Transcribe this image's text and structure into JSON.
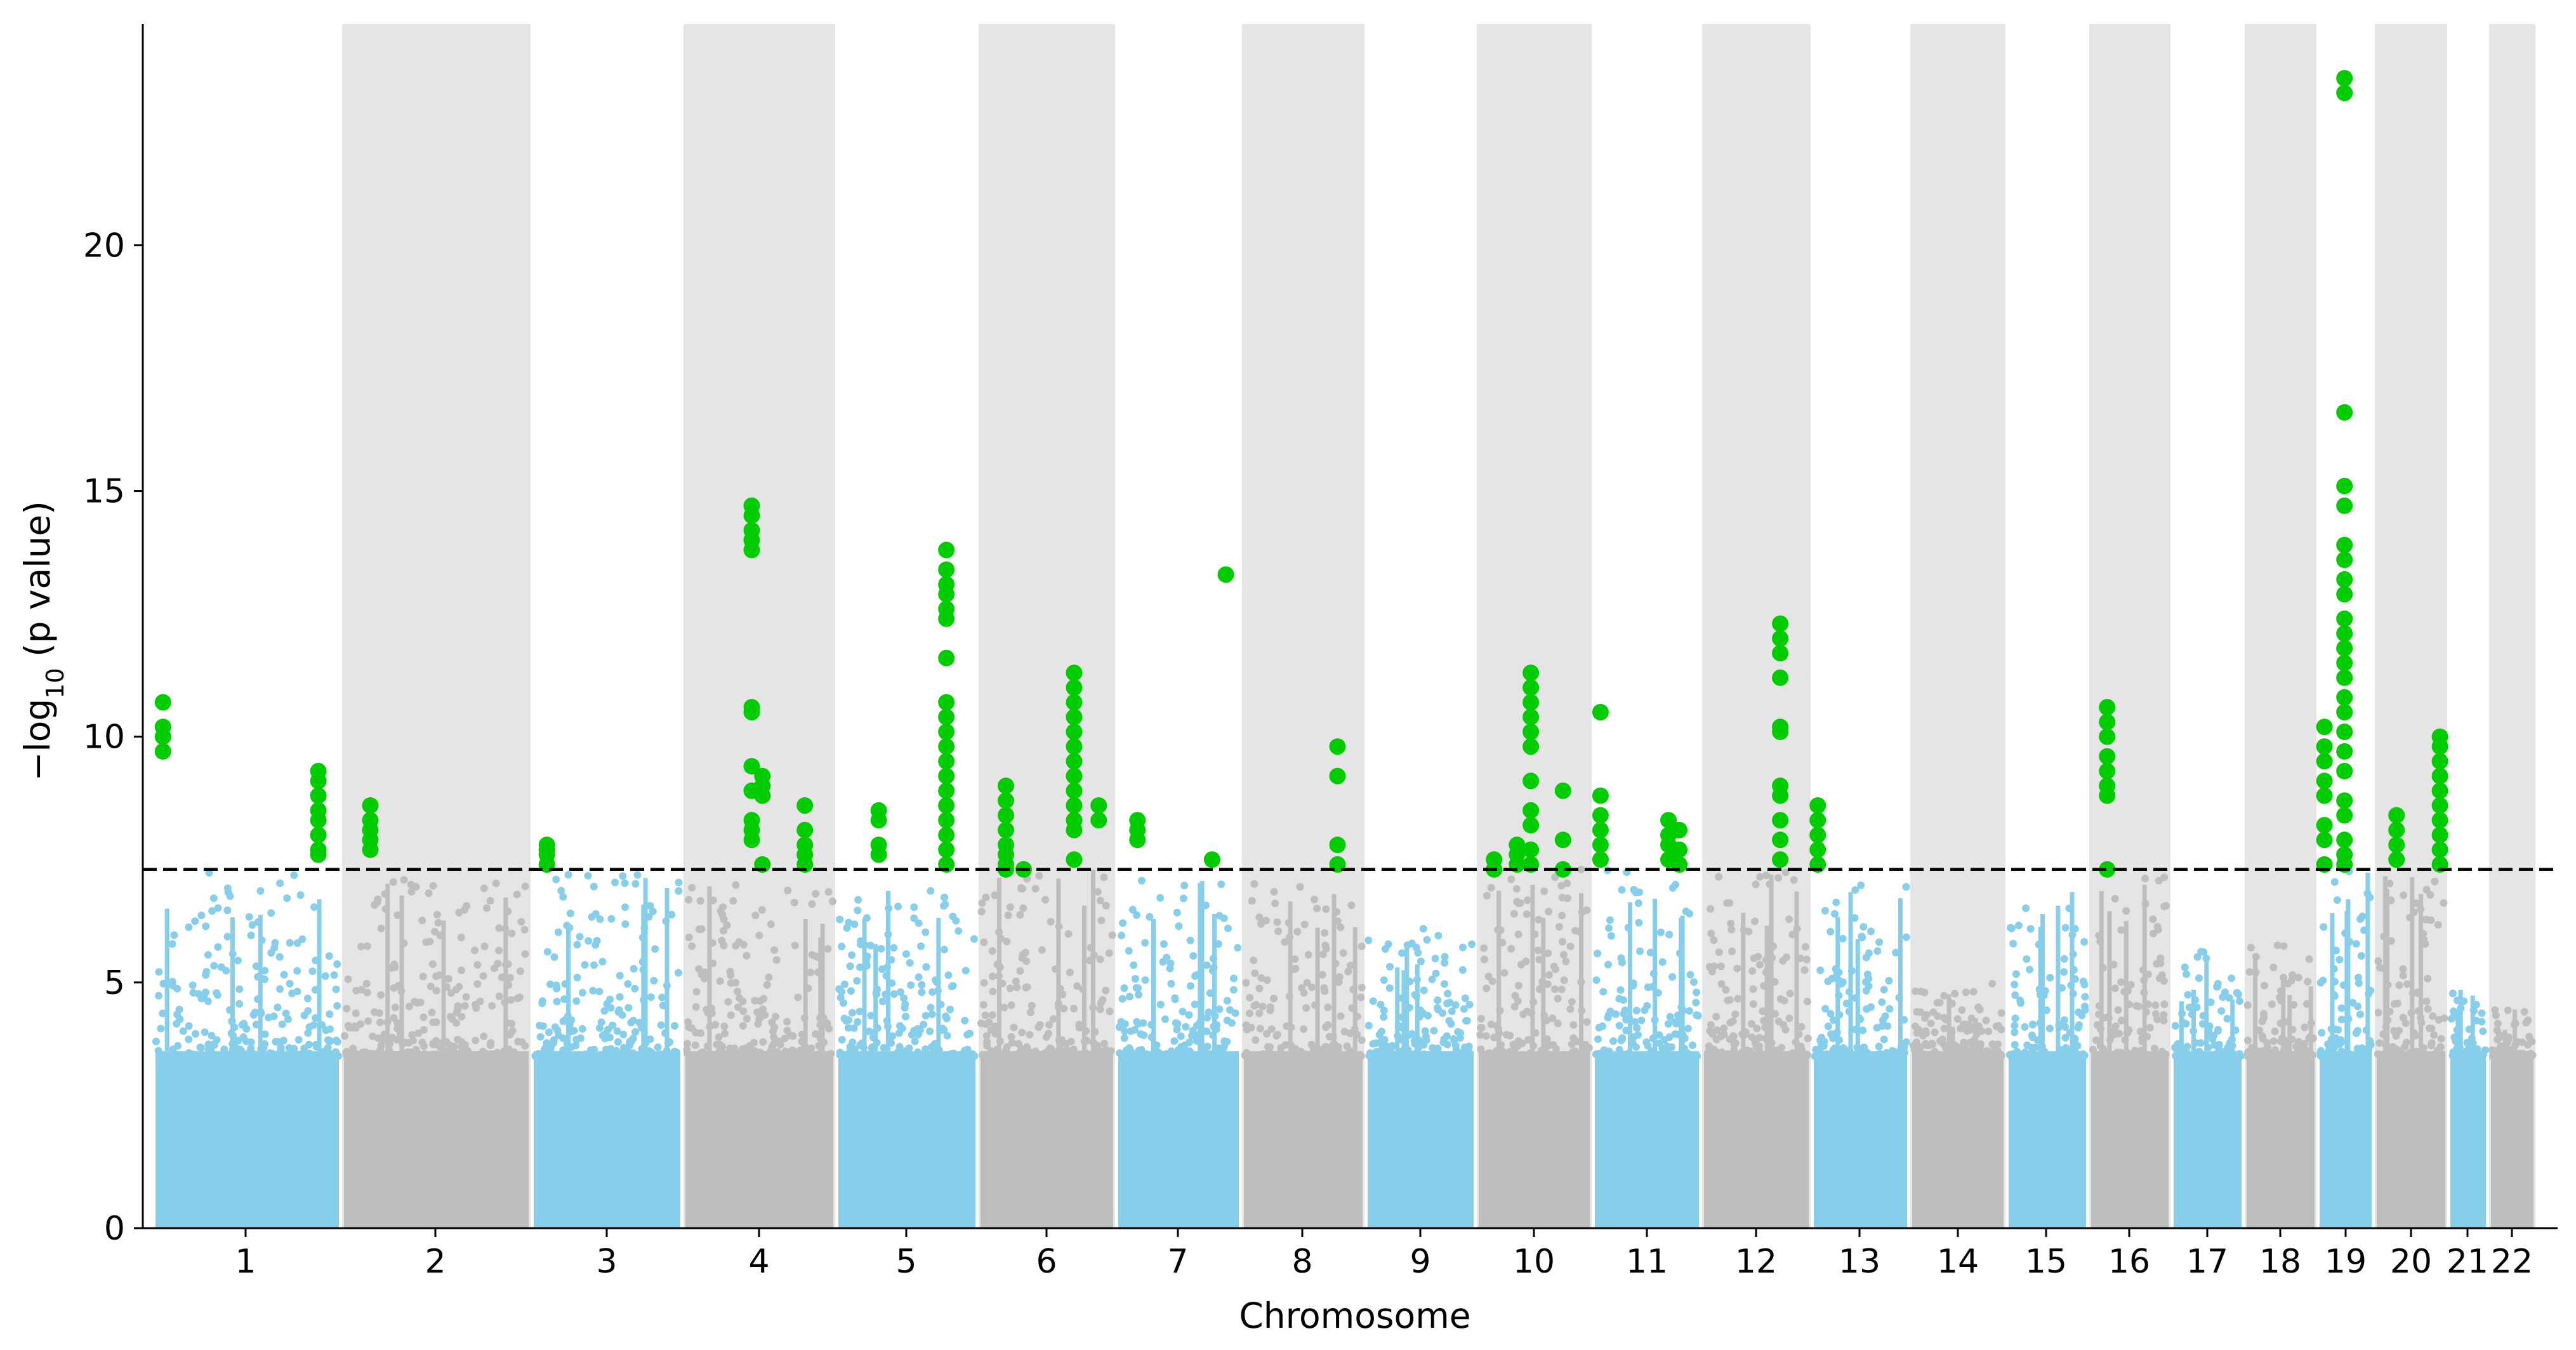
{
  "chart_data": {
    "type": "scatter",
    "subtype": "manhattan",
    "xlabel": "Chromosome",
    "ylabel": "−log10 (p value)",
    "ylim": [
      0,
      24.5
    ],
    "yticks": [
      0,
      5,
      10,
      15,
      20
    ],
    "grid": false,
    "legend": "none",
    "significance_threshold": 7.3,
    "colors": {
      "odd_chromosome": "#87CEEB",
      "even_chromosome": "#BEBEBE",
      "significant": "#00CC00",
      "band": "#E5E5E5",
      "threshold_line": "#000000"
    },
    "chromosomes": [
      {
        "label": "1",
        "band": false,
        "color": "odd",
        "peak": 7.3
      },
      {
        "label": "2",
        "band": true,
        "color": "even",
        "peak": 7.1
      },
      {
        "label": "3",
        "band": false,
        "color": "odd",
        "peak": 7.2
      },
      {
        "label": "4",
        "band": true,
        "color": "even",
        "peak": 7.0
      },
      {
        "label": "5",
        "band": false,
        "color": "odd",
        "peak": 6.9
      },
      {
        "label": "6",
        "band": true,
        "color": "even",
        "peak": 7.3
      },
      {
        "label": "7",
        "band": false,
        "color": "odd",
        "peak": 7.2
      },
      {
        "label": "8",
        "band": true,
        "color": "even",
        "peak": 7.1
      },
      {
        "label": "9",
        "band": false,
        "color": "odd",
        "peak": 6.2
      },
      {
        "label": "10",
        "band": true,
        "color": "even",
        "peak": 7.3
      },
      {
        "label": "11",
        "band": false,
        "color": "odd",
        "peak": 7.3
      },
      {
        "label": "12",
        "band": true,
        "color": "even",
        "peak": 7.3
      },
      {
        "label": "13",
        "band": false,
        "color": "odd",
        "peak": 7.0
      },
      {
        "label": "14",
        "band": true,
        "color": "even",
        "peak": 5.0
      },
      {
        "label": "15",
        "band": false,
        "color": "odd",
        "peak": 6.9
      },
      {
        "label": "16",
        "band": true,
        "color": "even",
        "peak": 7.2
      },
      {
        "label": "17",
        "band": false,
        "color": "odd",
        "peak": 5.7
      },
      {
        "label": "18",
        "band": true,
        "color": "even",
        "peak": 5.8
      },
      {
        "label": "19",
        "band": false,
        "color": "odd",
        "peak": 7.3
      },
      {
        "label": "20",
        "band": true,
        "color": "even",
        "peak": 7.2
      },
      {
        "label": "21",
        "band": false,
        "color": "odd",
        "peak": 4.9
      },
      {
        "label": "22",
        "band": true,
        "color": "even",
        "peak": 4.6
      }
    ],
    "significant_hits": [
      {
        "chromosome": "1",
        "pos": 0.05,
        "values": [
          10.7,
          10.2,
          10.0,
          9.7
        ]
      },
      {
        "chromosome": "1",
        "pos": 0.88,
        "values": [
          9.3,
          9.1,
          8.8,
          8.5,
          8.3,
          8.0,
          7.7,
          7.6
        ]
      },
      {
        "chromosome": "2",
        "pos": 0.15,
        "values": [
          8.6,
          8.3,
          8.1,
          7.9,
          7.7
        ]
      },
      {
        "chromosome": "3",
        "pos": 0.1,
        "values": [
          7.8,
          7.7,
          7.6,
          7.4
        ]
      },
      {
        "chromosome": "4",
        "pos": 0.45,
        "values": [
          14.7,
          14.5,
          14.2,
          14.0,
          13.8,
          10.6,
          10.5,
          9.4,
          8.9,
          8.3,
          8.1,
          7.9
        ]
      },
      {
        "chromosome": "4",
        "pos": 0.52,
        "values": [
          9.2,
          9.0,
          8.8,
          7.4
        ]
      },
      {
        "chromosome": "4",
        "pos": 0.8,
        "values": [
          8.6,
          8.1,
          7.8,
          7.6,
          7.4
        ]
      },
      {
        "chromosome": "5",
        "pos": 0.3,
        "values": [
          8.5,
          8.3,
          7.8,
          7.6
        ]
      },
      {
        "chromosome": "5",
        "pos": 0.78,
        "values": [
          13.8,
          13.4,
          13.1,
          12.9,
          12.6,
          12.4,
          11.6,
          10.7,
          10.4,
          10.1,
          9.8,
          9.5,
          9.2,
          8.9,
          8.6,
          8.3,
          8.0,
          7.7,
          7.4
        ]
      },
      {
        "chromosome": "6",
        "pos": 0.2,
        "values": [
          9.0,
          8.7,
          8.4,
          8.1,
          7.8,
          7.6,
          7.4,
          7.3
        ]
      },
      {
        "chromosome": "6",
        "pos": 0.33,
        "values": [
          7.3
        ]
      },
      {
        "chromosome": "6",
        "pos": 0.7,
        "values": [
          11.3,
          11.0,
          10.7,
          10.4,
          10.1,
          9.8,
          9.5,
          9.2,
          8.9,
          8.6,
          8.3,
          8.1,
          7.5
        ]
      },
      {
        "chromosome": "6",
        "pos": 0.88,
        "values": [
          8.6,
          8.3
        ]
      },
      {
        "chromosome": "7",
        "pos": 0.17,
        "values": [
          8.3,
          8.1,
          7.9
        ]
      },
      {
        "chromosome": "7",
        "pos": 0.77,
        "values": [
          7.5
        ]
      },
      {
        "chromosome": "7",
        "pos": 0.88,
        "values": [
          13.3
        ]
      },
      {
        "chromosome": "8",
        "pos": 0.78,
        "values": [
          9.8,
          9.2,
          7.8,
          7.4
        ]
      },
      {
        "chromosome": "10",
        "pos": 0.15,
        "values": [
          7.5,
          7.3
        ]
      },
      {
        "chromosome": "10",
        "pos": 0.35,
        "values": [
          7.8,
          7.6,
          7.4
        ]
      },
      {
        "chromosome": "10",
        "pos": 0.47,
        "values": [
          11.3,
          11.0,
          10.7,
          10.4,
          10.1,
          9.8,
          9.1,
          8.5,
          8.2,
          7.7,
          7.4
        ]
      },
      {
        "chromosome": "10",
        "pos": 0.75,
        "values": [
          8.9,
          7.9,
          7.3
        ]
      },
      {
        "chromosome": "11",
        "pos": 0.07,
        "values": [
          10.5,
          8.8,
          8.4,
          8.1,
          7.8,
          7.5
        ]
      },
      {
        "chromosome": "11",
        "pos": 0.7,
        "values": [
          8.3,
          8.0,
          7.8,
          7.5
        ]
      },
      {
        "chromosome": "11",
        "pos": 0.8,
        "values": [
          8.1,
          7.7,
          7.4
        ]
      },
      {
        "chromosome": "12",
        "pos": 0.72,
        "values": [
          12.3,
          12.0,
          11.7,
          11.2,
          10.2,
          10.1,
          9.0,
          8.8,
          8.3,
          7.9,
          7.5
        ]
      },
      {
        "chromosome": "13",
        "pos": 0.06,
        "values": [
          8.6,
          8.3,
          8.0,
          7.7,
          7.4
        ]
      },
      {
        "chromosome": "16",
        "pos": 0.22,
        "values": [
          10.6,
          10.3,
          10.0,
          9.6,
          9.3,
          9.0,
          8.8,
          7.3
        ]
      },
      {
        "chromosome": "19",
        "pos": 0.12,
        "values": [
          10.2,
          9.8,
          9.5,
          9.1,
          8.8,
          8.2,
          7.9,
          7.4
        ]
      },
      {
        "chromosome": "19",
        "pos": 0.48,
        "values": [
          23.4,
          23.1,
          16.6,
          15.1,
          14.7,
          13.9,
          13.6,
          13.2,
          12.9,
          12.4,
          12.1,
          11.8,
          11.5,
          11.2,
          10.8,
          10.5,
          10.1,
          9.7,
          9.3,
          8.7,
          8.4,
          7.9,
          7.6,
          7.4
        ]
      },
      {
        "chromosome": "20",
        "pos": 0.3,
        "values": [
          8.4,
          8.1,
          7.8,
          7.5
        ]
      },
      {
        "chromosome": "20",
        "pos": 0.9,
        "values": [
          10.0,
          9.8,
          9.5,
          9.2,
          8.9,
          8.6,
          8.3,
          8.0,
          7.7,
          7.4
        ]
      }
    ]
  }
}
